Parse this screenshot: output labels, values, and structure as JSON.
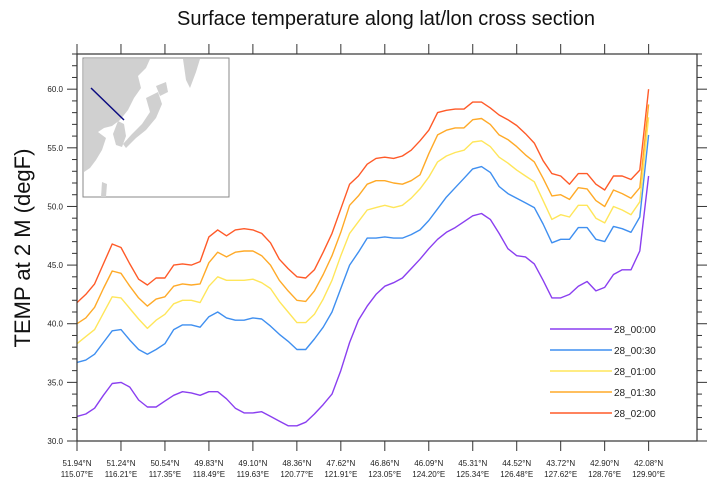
{
  "chart_data": {
    "type": "line",
    "title": "Surface temperature along lat/lon cross section",
    "xlabel": "",
    "ylabel": "TEMP at 2 M (degF)",
    "ylim": [
      30,
      63
    ],
    "xlim": [
      0,
      70.5
    ],
    "grid": false,
    "legend_position": "bottom-right",
    "yticks": [
      "30.0",
      "35.0",
      "40.0",
      "45.0",
      "50.0",
      "55.0",
      "60.0"
    ],
    "ytick_values": [
      30,
      35,
      40,
      45,
      50,
      55,
      60
    ],
    "xtick_index": [
      0,
      5,
      10,
      15,
      20,
      25,
      30,
      35,
      40,
      45,
      50,
      55,
      60,
      65
    ],
    "xtick_lat": [
      "51.94°N",
      "51.24°N",
      "50.54°N",
      "49.83°N",
      "49.10°N",
      "48.36°N",
      "47.62°N",
      "46.86°N",
      "46.09°N",
      "45.31°N",
      "44.52°N",
      "43.72°N",
      "42.90°N",
      "42.08°N"
    ],
    "xtick_lon": [
      "115.07°E",
      "116.21°E",
      "117.35°E",
      "118.49°E",
      "119.63°E",
      "120.77°E",
      "121.91°E",
      "123.05°E",
      "124.20°E",
      "125.34°E",
      "126.48°E",
      "127.62°E",
      "128.76°E",
      "129.90°E"
    ],
    "series": [
      {
        "name": "28_00:00",
        "color": "#8a3ff0",
        "values": [
          32.1,
          32.3,
          32.8,
          33.9,
          34.9,
          35.0,
          34.6,
          33.5,
          32.9,
          32.9,
          33.4,
          33.9,
          34.2,
          34.1,
          33.9,
          34.2,
          34.2,
          33.6,
          32.8,
          32.4,
          32.4,
          32.5,
          32.1,
          31.7,
          31.3,
          31.3,
          31.6,
          32.3,
          33.1,
          34.0,
          36.0,
          38.4,
          40.3,
          41.5,
          42.5,
          43.2,
          43.5,
          43.9,
          44.7,
          45.5,
          46.4,
          47.2,
          47.8,
          48.2,
          48.7,
          49.2,
          49.4,
          48.9,
          47.7,
          46.4,
          45.8,
          45.7,
          45.1,
          43.7,
          42.2,
          42.2,
          42.5,
          43.2,
          43.6,
          42.8,
          43.1,
          44.2,
          44.6,
          44.6,
          46.2,
          52.6
        ]
      },
      {
        "name": "28_00:30",
        "color": "#3f8ff0",
        "values": [
          36.7,
          36.9,
          37.4,
          38.4,
          39.4,
          39.5,
          38.6,
          37.8,
          37.4,
          37.8,
          38.3,
          39.5,
          39.9,
          39.9,
          39.7,
          40.6,
          41.0,
          40.5,
          40.3,
          40.3,
          40.5,
          40.4,
          39.8,
          39.1,
          38.5,
          37.8,
          37.8,
          38.7,
          39.7,
          41.0,
          43.0,
          45.0,
          46.1,
          47.3,
          47.3,
          47.4,
          47.3,
          47.3,
          47.6,
          48.0,
          48.8,
          49.8,
          50.8,
          51.6,
          52.4,
          53.2,
          53.4,
          52.9,
          51.7,
          51.1,
          50.7,
          50.3,
          49.9,
          48.5,
          46.9,
          47.2,
          47.2,
          48.2,
          48.2,
          47.2,
          47.0,
          48.3,
          48.1,
          47.8,
          49.1,
          56.1
        ]
      },
      {
        "name": "28_01:00",
        "color": "#ffe65a",
        "values": [
          38.3,
          38.9,
          39.5,
          40.9,
          42.3,
          42.2,
          41.3,
          40.4,
          39.6,
          40.3,
          40.8,
          41.7,
          42.0,
          42.0,
          41.8,
          43.2,
          44.0,
          43.7,
          43.7,
          43.7,
          43.8,
          43.5,
          43.0,
          41.9,
          41.0,
          40.1,
          40.1,
          40.8,
          42.1,
          43.7,
          45.8,
          47.7,
          48.7,
          49.7,
          49.9,
          50.1,
          49.9,
          50.1,
          50.7,
          51.5,
          52.5,
          53.8,
          54.3,
          54.6,
          54.8,
          55.5,
          55.6,
          55.1,
          54.2,
          53.7,
          53.1,
          52.6,
          52.1,
          50.5,
          48.9,
          49.3,
          49.1,
          50.1,
          50.1,
          49.0,
          48.6,
          50.0,
          49.7,
          49.3,
          50.4,
          57.6
        ]
      },
      {
        "name": "28_01:30",
        "color": "#ffaa28",
        "values": [
          40.0,
          40.5,
          41.4,
          43.0,
          44.5,
          44.3,
          43.2,
          42.2,
          41.5,
          42.1,
          42.3,
          43.2,
          43.4,
          43.3,
          43.4,
          45.2,
          46.1,
          45.7,
          46.1,
          46.2,
          46.2,
          45.8,
          45.0,
          43.7,
          42.8,
          42.0,
          41.9,
          42.8,
          44.2,
          45.8,
          47.8,
          50.1,
          50.9,
          51.9,
          52.2,
          52.2,
          52.0,
          51.9,
          52.2,
          52.7,
          54.5,
          56.1,
          56.5,
          56.7,
          56.7,
          57.4,
          57.5,
          57.0,
          56.1,
          55.7,
          55.1,
          54.4,
          53.8,
          52.4,
          50.9,
          51.0,
          50.6,
          51.6,
          51.5,
          50.5,
          50.0,
          51.4,
          51.1,
          50.7,
          51.6,
          58.7
        ]
      },
      {
        "name": "28_02:00",
        "color": "#ff5a28",
        "values": [
          41.8,
          42.5,
          43.4,
          45.1,
          46.8,
          46.5,
          45.1,
          43.8,
          43.3,
          43.9,
          43.9,
          45.0,
          45.1,
          45.0,
          45.3,
          47.4,
          48.0,
          47.5,
          48.0,
          48.1,
          48.0,
          47.7,
          46.9,
          45.5,
          44.7,
          44.0,
          43.9,
          44.6,
          46.1,
          47.7,
          49.8,
          51.9,
          52.6,
          53.6,
          54.1,
          54.2,
          54.1,
          54.3,
          54.8,
          55.6,
          56.5,
          58.0,
          58.2,
          58.3,
          58.3,
          58.9,
          58.9,
          58.4,
          57.8,
          57.4,
          56.9,
          56.2,
          55.4,
          53.9,
          52.8,
          52.6,
          51.9,
          52.8,
          52.8,
          51.9,
          51.4,
          52.6,
          52.6,
          52.3,
          53.1,
          60.0
        ]
      }
    ]
  },
  "inset_map": {
    "land_color": "#d0d0d0",
    "section_line_color": "#0a0a80"
  }
}
